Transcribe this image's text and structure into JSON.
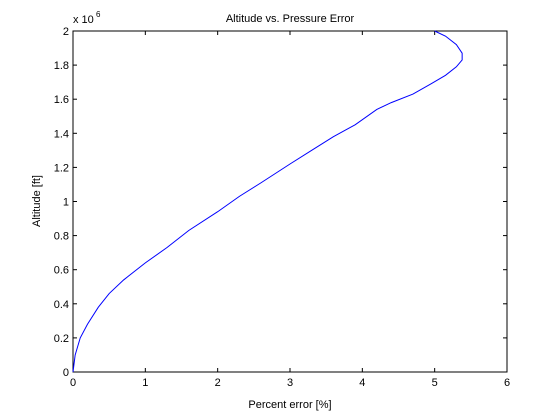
{
  "chart_data": {
    "type": "line",
    "title": "Altitude vs. Pressure Error",
    "xlabel": "Percent error [%]",
    "ylabel": "Altitude [ft]",
    "xlim": [
      0,
      6
    ],
    "ylim": [
      0,
      2000000
    ],
    "x_ticks": [
      "0",
      "1",
      "2",
      "3",
      "4",
      "5",
      "6"
    ],
    "y_ticks": [
      "0",
      "0.2",
      "0.4",
      "0.6",
      "0.8",
      "1",
      "1.2",
      "1.4",
      "1.6",
      "1.8",
      "2"
    ],
    "y_multiplier_base": "x 10",
    "y_multiplier_exp": "6",
    "grid": false,
    "line_color": "#0000ff",
    "series": [
      {
        "x": [
          0.0,
          0.03,
          0.1,
          0.2,
          0.35,
          0.5,
          0.7,
          1.0,
          1.3,
          1.6,
          2.0,
          2.3,
          2.6,
          3.0,
          3.3,
          3.6,
          3.9,
          4.2,
          4.4,
          4.7,
          4.95,
          5.15,
          5.3,
          5.38,
          5.38,
          5.3,
          5.15,
          5.0
        ],
        "y": [
          0,
          100000,
          200000,
          280000,
          380000,
          460000,
          540000,
          640000,
          730000,
          830000,
          940000,
          1030000,
          1110000,
          1220000,
          1300000,
          1380000,
          1450000,
          1540000,
          1580000,
          1630000,
          1690000,
          1740000,
          1790000,
          1830000,
          1870000,
          1920000,
          1970000,
          2000000
        ]
      }
    ]
  }
}
